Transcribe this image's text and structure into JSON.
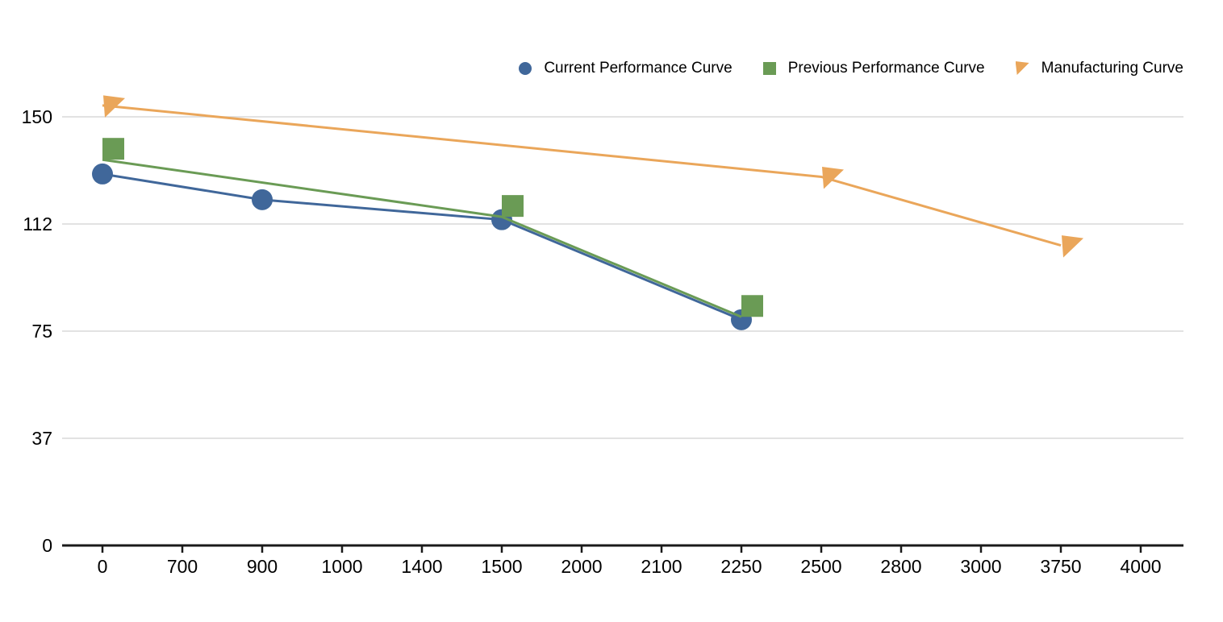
{
  "chart_data": {
    "type": "line",
    "categories": [
      "0",
      "700",
      "900",
      "1000",
      "1400",
      "1500",
      "2000",
      "2100",
      "2250",
      "2500",
      "2800",
      "3000",
      "3750",
      "4000"
    ],
    "y_axis": {
      "tick_labels": [
        "0",
        "37",
        "75",
        "112",
        "150"
      ],
      "min": 0,
      "max": 150
    },
    "grid": "horizontal",
    "legend_position": "top-right",
    "grid_color": "#d9d9d9",
    "axis_color": "#1a1a1a",
    "background_color": "#ffffff",
    "series": [
      {
        "name": "Current Performance Curve",
        "marker": "circle",
        "color": "#40679a",
        "points": [
          {
            "x": "0",
            "y": 130
          },
          {
            "x": "900",
            "y": 121
          },
          {
            "x": "1500",
            "y": 114
          },
          {
            "x": "2250",
            "y": 79
          }
        ]
      },
      {
        "name": "Previous Performance Curve",
        "marker": "square",
        "color": "#6a9b55",
        "points": [
          {
            "x": "0",
            "y": 135
          },
          {
            "x": "1500",
            "y": 115
          },
          {
            "x": "2250",
            "y": 80
          }
        ]
      },
      {
        "name": "Manufacturing Curve",
        "marker": "triangle",
        "color": "#eaa65a",
        "points": [
          {
            "x": "0",
            "y": 154
          },
          {
            "x": "2500",
            "y": 129
          },
          {
            "x": "3750",
            "y": 105
          }
        ]
      }
    ]
  }
}
